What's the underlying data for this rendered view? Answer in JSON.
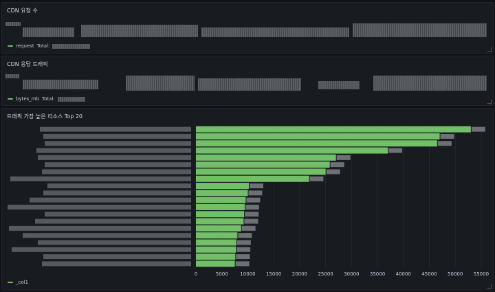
{
  "panels": {
    "requests": {
      "title": "CDN 요청 수",
      "legend_label": "request",
      "legend_total_label": "Total:"
    },
    "traffic": {
      "title": "CDN 응답 트래픽",
      "legend_label": "bytes_mb",
      "legend_total_label": "Total:"
    },
    "top": {
      "title": "트래픽 가장 높은 리소스 Top 20",
      "legend_label": "_col1"
    }
  },
  "colors": {
    "series": "#73bf69",
    "value_overlay": "#6e7075",
    "background": "#181b1f"
  },
  "chart_data": {
    "type": "bar",
    "orientation": "horizontal",
    "title": "트래픽 가장 높은 리소스 Top 20",
    "series": [
      {
        "name": "_col1",
        "values": [
          53000,
          47000,
          46500,
          37000,
          27000,
          25800,
          25000,
          21800,
          10200,
          10000,
          9600,
          9400,
          9300,
          9200,
          8700,
          8000,
          7800,
          7700,
          7600,
          7500
        ]
      }
    ],
    "xlim": [
      0,
      57000
    ],
    "xticks": [
      "0",
      "5000",
      "10000",
      "15000",
      "20000",
      "25000",
      "30000",
      "35000",
      "40000",
      "45000",
      "50000",
      "55000"
    ],
    "grid": true,
    "legend_position": "bottom-left"
  }
}
